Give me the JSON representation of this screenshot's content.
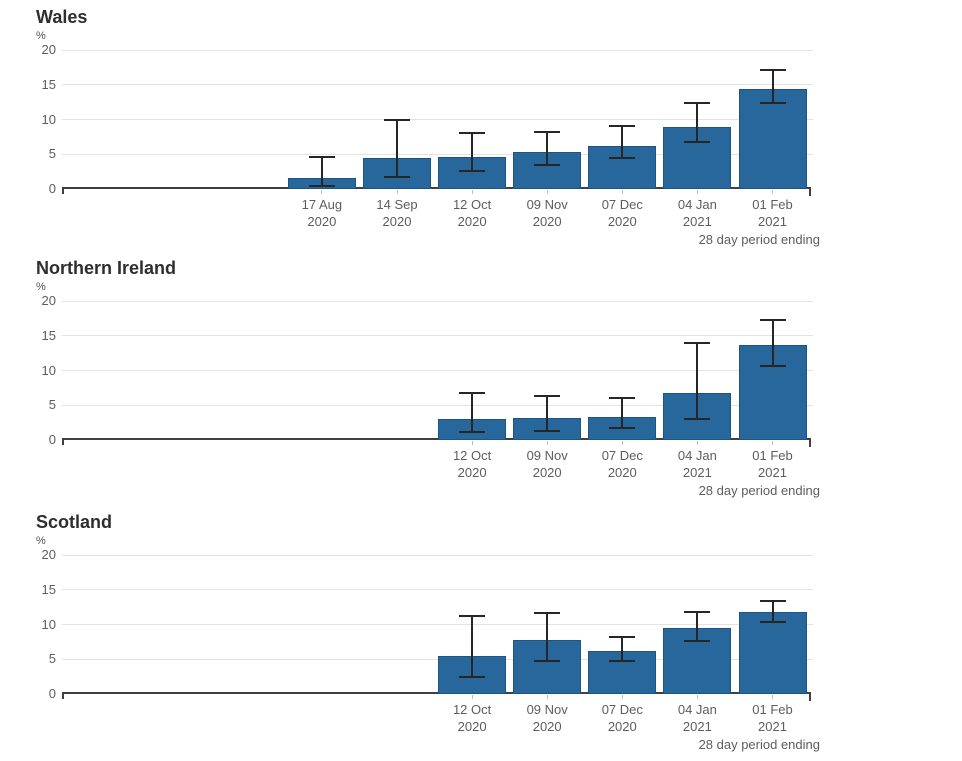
{
  "page": {
    "background": "#ffffff",
    "axis_color": "#404040",
    "gridline_color": "#e3e3e3",
    "text_color": "#5d5d5d"
  },
  "chart_data": [
    {
      "type": "bar",
      "title": "Wales",
      "ylabel": "%",
      "xlabel": "",
      "xaxis_note": "28 day period ending",
      "ylim": [
        0,
        20
      ],
      "yticks": [
        0,
        5,
        10,
        15,
        20
      ],
      "grid": true,
      "legend": "none",
      "bar_color": "#28679c",
      "error_color": "#262626",
      "categories": [
        [
          "17 Aug",
          "2020"
        ],
        [
          "14 Sep",
          "2020"
        ],
        [
          "12 Oct",
          "2020"
        ],
        [
          "09 Nov",
          "2020"
        ],
        [
          "07 Dec",
          "2020"
        ],
        [
          "04 Jan",
          "2021"
        ],
        [
          "01 Feb",
          "2021"
        ]
      ],
      "values": [
        1.6,
        4.4,
        4.6,
        5.3,
        6.2,
        8.9,
        14.4
      ],
      "error_low": [
        0.4,
        1.7,
        2.6,
        3.5,
        4.5,
        6.8,
        12.4
      ],
      "error_high": [
        4.6,
        9.9,
        8.1,
        8.2,
        9.1,
        12.4,
        17.1
      ]
    },
    {
      "type": "bar",
      "title": "Northern Ireland",
      "ylabel": "%",
      "xlabel": "",
      "xaxis_note": "28 day period ending",
      "ylim": [
        0,
        20
      ],
      "yticks": [
        0,
        5,
        10,
        15,
        20
      ],
      "grid": true,
      "legend": "none",
      "bar_color": "#28679c",
      "error_color": "#262626",
      "categories": [
        [
          "12 Oct",
          "2020"
        ],
        [
          "09 Nov",
          "2020"
        ],
        [
          "07 Dec",
          "2020"
        ],
        [
          "04 Jan",
          "2021"
        ],
        [
          "01 Feb",
          "2021"
        ]
      ],
      "values": [
        3.0,
        3.2,
        3.3,
        6.8,
        13.6
      ],
      "error_low": [
        1.2,
        1.3,
        1.7,
        3.0,
        10.6
      ],
      "error_high": [
        6.7,
        6.4,
        6.1,
        13.9,
        17.2
      ]
    },
    {
      "type": "bar",
      "title": "Scotland",
      "ylabel": "%",
      "xlabel": "",
      "xaxis_note": "28 day period ending",
      "ylim": [
        0,
        20
      ],
      "yticks": [
        0,
        5,
        10,
        15,
        20
      ],
      "grid": true,
      "legend": "none",
      "bar_color": "#28679c",
      "error_color": "#262626",
      "categories": [
        [
          "12 Oct",
          "2020"
        ],
        [
          "09 Nov",
          "2020"
        ],
        [
          "07 Dec",
          "2020"
        ],
        [
          "04 Jan",
          "2021"
        ],
        [
          "01 Feb",
          "2021"
        ]
      ],
      "values": [
        5.5,
        7.7,
        6.2,
        9.5,
        11.8
      ],
      "error_low": [
        2.5,
        4.8,
        4.7,
        7.6,
        10.4
      ],
      "error_high": [
        11.2,
        11.7,
        8.2,
        11.8,
        13.4
      ]
    }
  ]
}
